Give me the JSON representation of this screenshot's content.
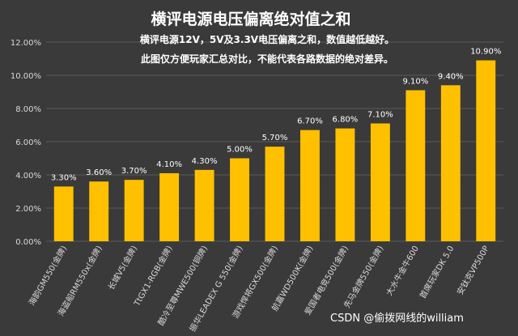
{
  "chart_data": {
    "type": "bar",
    "title": "横评电源电压偏离绝对值之和",
    "subtitle_lines": [
      "横评电源12V，5V及3.3V电压偏离之和，数值越低越好。",
      "此图仅方便玩家汇总对比，不能代表各路数据的绝对差异。"
    ],
    "categories": [
      "海韵GM550(金牌)",
      "海盗船RM550x(金牌)",
      "长城V5(金牌)",
      "TtGX1-RGB(金牌)",
      "酷冷至尊MWE500(铜牌)",
      "振华LEADEX G 550(金牌)",
      "游戏悍将GX500(金牌)",
      "航嘉WD500K(金牌)",
      "爱国者电竞500(金牌)",
      "先马金牌550(金牌)",
      "大水牛金牛600",
      "首席玩家DK 5.0",
      "安钛克VP500P"
    ],
    "values": [
      3.3,
      3.6,
      3.7,
      4.1,
      4.3,
      5.0,
      5.7,
      6.7,
      6.8,
      7.1,
      9.1,
      9.4,
      10.9
    ],
    "data_labels": [
      "3.30%",
      "3.60%",
      "3.70%",
      "4.10%",
      "4.30%",
      "5.00%",
      "5.70%",
      "6.70%",
      "6.80%",
      "7.10%",
      "9.10%",
      "9.40%",
      "10.90%"
    ],
    "ylim": [
      0,
      12
    ],
    "yticks": [
      0,
      2,
      4,
      6,
      8,
      10,
      12
    ],
    "ytick_labels": [
      "0.00%",
      "2.00%",
      "4.00%",
      "6.00%",
      "8.00%",
      "10.00%",
      "12.00%"
    ],
    "grid": true,
    "legend": "none",
    "xlabel": "",
    "ylabel": "",
    "colors": {
      "bar": "#ffc000",
      "background": "#3a3a3a",
      "grid": "#595959",
      "text": "#ffffff",
      "tick_text": "#d9d9d9"
    }
  },
  "watermark": "CSDN @偷拨网线的william"
}
